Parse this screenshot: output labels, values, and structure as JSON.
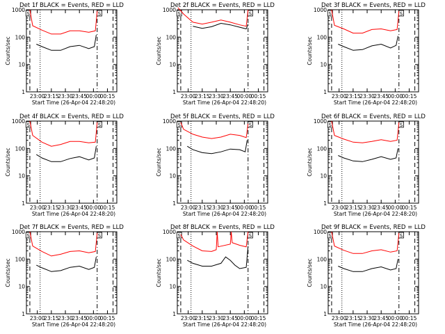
{
  "figure": {
    "ylabel": "Counts/sec",
    "xlabel": "Start Time (26-Apr-04 22:48:20)",
    "ytick_labels": [
      "1",
      "10",
      "100",
      "1000"
    ],
    "xtick_labels": [
      "23:00",
      "23:15",
      "23:30",
      "23:45",
      "00:00",
      "00:15"
    ],
    "marker_label": "S",
    "colors": {
      "events": "#000000",
      "lld": "#ff0000",
      "axes": "#000000"
    }
  },
  "chart_data": [
    {
      "type": "line",
      "title": "Det 1f BLACK = Events, RED = LLD",
      "ylog": true,
      "ylim": [
        1,
        1000
      ],
      "xlim": [
        "22:48:20",
        "00:25:00"
      ],
      "series": [
        {
          "color": "red",
          "points": [
            [
              "22:52",
              1000
            ],
            [
              "22:55",
              260
            ],
            [
              "23:05",
              180
            ],
            [
              "23:15",
              130
            ],
            [
              "23:25",
              130
            ],
            [
              "23:35",
              170
            ],
            [
              "23:45",
              170
            ],
            [
              "23:55",
              150
            ],
            [
              "00:02",
              170
            ],
            [
              "00:04",
              900
            ]
          ]
        },
        {
          "color": "black",
          "points": [
            [
              "22:59",
              55
            ],
            [
              "23:05",
              45
            ],
            [
              "23:15",
              33
            ],
            [
              "23:25",
              33
            ],
            [
              "23:35",
              45
            ],
            [
              "23:45",
              50
            ],
            [
              "23:55",
              38
            ],
            [
              "00:01",
              45
            ],
            [
              "00:03",
              120
            ]
          ]
        }
      ]
    },
    {
      "type": "line",
      "title": "Det 2f BLACK = Events, RED = LLD",
      "ylog": true,
      "ylim": [
        1,
        1000
      ],
      "xlim": [
        "22:48:20",
        "00:25:00"
      ],
      "series": [
        {
          "color": "red",
          "points": [
            [
              "22:49",
              1200
            ],
            [
              "22:55",
              700
            ],
            [
              "23:05",
              350
            ],
            [
              "23:15",
              300
            ],
            [
              "23:25",
              350
            ],
            [
              "23:35",
              420
            ],
            [
              "23:45",
              350
            ],
            [
              "23:55",
              280
            ],
            [
              "00:02",
              250
            ],
            [
              "00:04",
              1000
            ]
          ]
        },
        {
          "color": "black",
          "points": [
            [
              "23:05",
              250
            ],
            [
              "23:15",
              210
            ],
            [
              "23:25",
              240
            ],
            [
              "23:35",
              320
            ],
            [
              "23:45",
              280
            ],
            [
              "23:55",
              230
            ],
            [
              "00:02",
              200
            ],
            [
              "00:04",
              300
            ]
          ]
        }
      ]
    },
    {
      "type": "line",
      "title": "Det 3f BLACK = Events, RED = LLD",
      "ylog": true,
      "ylim": [
        1,
        1000
      ],
      "xlim": [
        "22:48:20",
        "00:25:00"
      ],
      "series": [
        {
          "color": "red",
          "points": [
            [
              "22:52",
              1000
            ],
            [
              "22:55",
              270
            ],
            [
              "23:05",
              200
            ],
            [
              "23:15",
              140
            ],
            [
              "23:25",
              140
            ],
            [
              "23:35",
              190
            ],
            [
              "23:45",
              200
            ],
            [
              "23:55",
              170
            ],
            [
              "00:02",
              190
            ],
            [
              "00:04",
              900
            ]
          ]
        },
        {
          "color": "black",
          "points": [
            [
              "22:59",
              55
            ],
            [
              "23:05",
              45
            ],
            [
              "23:15",
              33
            ],
            [
              "23:25",
              35
            ],
            [
              "23:35",
              48
            ],
            [
              "23:45",
              55
            ],
            [
              "23:55",
              40
            ],
            [
              "00:01",
              50
            ],
            [
              "00:03",
              110
            ]
          ]
        }
      ]
    },
    {
      "type": "line",
      "title": "Det 4f BLACK = Events, RED = LLD",
      "ylog": true,
      "ylim": [
        1,
        1000
      ],
      "xlim": [
        "22:48:20",
        "00:25:00"
      ],
      "series": [
        {
          "color": "red",
          "points": [
            [
              "22:52",
              1000
            ],
            [
              "22:55",
              300
            ],
            [
              "23:05",
              170
            ],
            [
              "23:15",
              120
            ],
            [
              "23:25",
              140
            ],
            [
              "23:35",
              180
            ],
            [
              "23:45",
              180
            ],
            [
              "23:55",
              160
            ],
            [
              "00:02",
              170
            ],
            [
              "00:04",
              900
            ]
          ]
        },
        {
          "color": "black",
          "points": [
            [
              "22:59",
              60
            ],
            [
              "23:05",
              45
            ],
            [
              "23:15",
              33
            ],
            [
              "23:25",
              33
            ],
            [
              "23:35",
              43
            ],
            [
              "23:45",
              50
            ],
            [
              "23:55",
              38
            ],
            [
              "00:01",
              45
            ],
            [
              "00:03",
              120
            ]
          ]
        }
      ]
    },
    {
      "type": "line",
      "title": "Det 5f BLACK = Events, RED = LLD",
      "ylog": true,
      "ylim": [
        1,
        1000
      ],
      "xlim": [
        "22:48:20",
        "00:25:00"
      ],
      "series": [
        {
          "color": "red",
          "points": [
            [
              "22:52",
              900
            ],
            [
              "22:55",
              500
            ],
            [
              "23:05",
              330
            ],
            [
              "23:15",
              260
            ],
            [
              "23:25",
              230
            ],
            [
              "23:35",
              260
            ],
            [
              "23:45",
              330
            ],
            [
              "23:55",
              300
            ],
            [
              "00:02",
              250
            ],
            [
              "00:04",
              800
            ]
          ]
        },
        {
          "color": "black",
          "points": [
            [
              "22:59",
              120
            ],
            [
              "23:05",
              90
            ],
            [
              "23:15",
              70
            ],
            [
              "23:25",
              65
            ],
            [
              "23:35",
              75
            ],
            [
              "23:45",
              95
            ],
            [
              "23:55",
              90
            ],
            [
              "00:01",
              75
            ],
            [
              "00:03",
              200
            ]
          ]
        }
      ]
    },
    {
      "type": "line",
      "title": "Det 6f BLACK = Events, RED = LLD",
      "ylog": true,
      "ylim": [
        1,
        1000
      ],
      "xlim": [
        "22:48:20",
        "00:25:00"
      ],
      "series": [
        {
          "color": "red",
          "points": [
            [
              "22:52",
              1000
            ],
            [
              "22:55",
              300
            ],
            [
              "23:05",
              220
            ],
            [
              "23:15",
              170
            ],
            [
              "23:25",
              160
            ],
            [
              "23:35",
              180
            ],
            [
              "23:45",
              210
            ],
            [
              "23:55",
              180
            ],
            [
              "00:02",
              200
            ],
            [
              "00:04",
              900
            ]
          ]
        },
        {
          "color": "black",
          "points": [
            [
              "22:59",
              55
            ],
            [
              "23:05",
              45
            ],
            [
              "23:15",
              35
            ],
            [
              "23:25",
              33
            ],
            [
              "23:35",
              40
            ],
            [
              "23:45",
              50
            ],
            [
              "23:55",
              40
            ],
            [
              "00:01",
              45
            ],
            [
              "00:03",
              100
            ]
          ]
        }
      ]
    },
    {
      "type": "line",
      "title": "Det 7f BLACK = Events, RED = LLD",
      "ylog": true,
      "ylim": [
        1,
        1000
      ],
      "xlim": [
        "22:48:20",
        "00:25:00"
      ],
      "series": [
        {
          "color": "red",
          "points": [
            [
              "22:52",
              1000
            ],
            [
              "22:55",
              300
            ],
            [
              "23:05",
              190
            ],
            [
              "23:15",
              130
            ],
            [
              "23:25",
              150
            ],
            [
              "23:35",
              190
            ],
            [
              "23:45",
              200
            ],
            [
              "23:55",
              170
            ],
            [
              "00:02",
              190
            ],
            [
              "00:04",
              900
            ]
          ]
        },
        {
          "color": "black",
          "points": [
            [
              "22:59",
              60
            ],
            [
              "23:05",
              48
            ],
            [
              "23:15",
              35
            ],
            [
              "23:25",
              38
            ],
            [
              "23:35",
              50
            ],
            [
              "23:45",
              55
            ],
            [
              "23:55",
              42
            ],
            [
              "00:01",
              50
            ],
            [
              "00:03",
              120
            ]
          ]
        }
      ]
    },
    {
      "type": "line",
      "title": "Det 8f BLACK = Events, RED = LLD",
      "ylog": true,
      "ylim": [
        1,
        1000
      ],
      "xlim": [
        "22:48:20",
        "00:25:00"
      ],
      "series": [
        {
          "color": "red",
          "points": [
            [
              "22:52",
              800
            ],
            [
              "22:55",
              500
            ],
            [
              "23:05",
              300
            ],
            [
              "23:15",
              200
            ],
            [
              "23:25",
              190
            ],
            [
              "23:30",
              220
            ],
            [
              "23:31",
              1000
            ],
            [
              "23:32",
              280
            ],
            [
              "23:45",
              350
            ],
            [
              "23:46",
              1000
            ],
            [
              "23:47",
              400
            ],
            [
              "23:55",
              320
            ],
            [
              "00:02",
              280
            ],
            [
              "00:04",
              1000
            ]
          ]
        },
        {
          "color": "black",
          "points": [
            [
              "22:59",
              90
            ],
            [
              "23:05",
              70
            ],
            [
              "23:15",
              55
            ],
            [
              "23:25",
              55
            ],
            [
              "23:35",
              70
            ],
            [
              "23:40",
              120
            ],
            [
              "23:45",
              90
            ],
            [
              "23:50",
              60
            ],
            [
              "23:55",
              45
            ],
            [
              "00:02",
              50
            ],
            [
              "00:04",
              300
            ]
          ]
        }
      ]
    },
    {
      "type": "line",
      "title": "Det 9f BLACK = Events, RED = LLD",
      "ylog": true,
      "ylim": [
        1,
        1000
      ],
      "xlim": [
        "22:48:20",
        "00:25:00"
      ],
      "series": [
        {
          "color": "red",
          "points": [
            [
              "22:52",
              1000
            ],
            [
              "22:55",
              300
            ],
            [
              "23:05",
              210
            ],
            [
              "23:15",
              160
            ],
            [
              "23:25",
              160
            ],
            [
              "23:35",
              200
            ],
            [
              "23:45",
              220
            ],
            [
              "23:55",
              180
            ],
            [
              "00:02",
              200
            ],
            [
              "00:04",
              900
            ]
          ]
        },
        {
          "color": "black",
          "points": [
            [
              "22:59",
              55
            ],
            [
              "23:05",
              45
            ],
            [
              "23:15",
              35
            ],
            [
              "23:25",
              35
            ],
            [
              "23:35",
              45
            ],
            [
              "23:45",
              52
            ],
            [
              "23:55",
              40
            ],
            [
              "00:01",
              45
            ],
            [
              "00:03",
              100
            ]
          ]
        }
      ]
    }
  ]
}
